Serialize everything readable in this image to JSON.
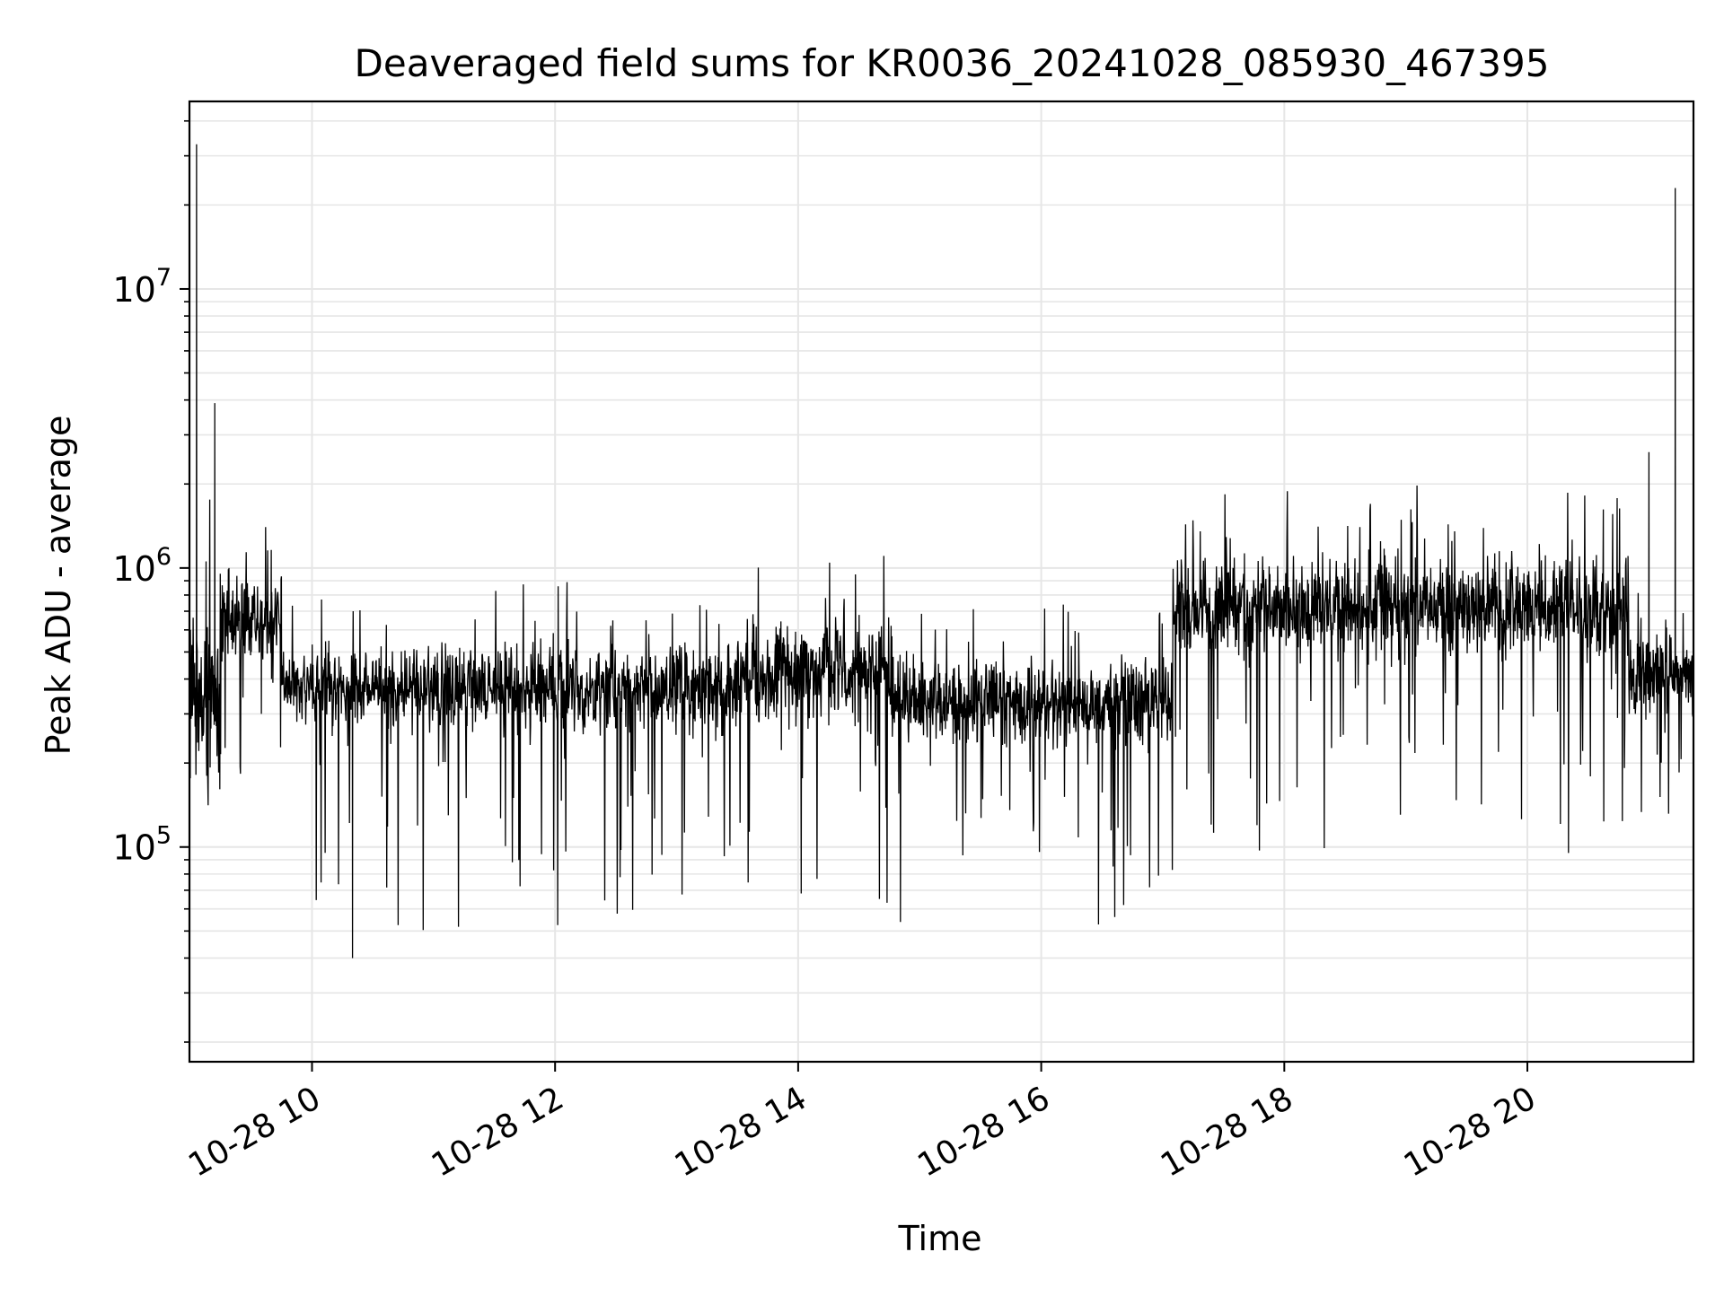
{
  "chart_data": {
    "type": "line",
    "title": "Deaveraged field sums for KR0036_20241028_085930_467395",
    "xlabel": "Time",
    "ylabel": "Peak ADU - average",
    "x_axis": {
      "kind": "datetime",
      "range": [
        "2024-10-28T08:59:30",
        "2024-10-28T21:22:00"
      ],
      "ticks": [
        {
          "value": "2024-10-28T10:00",
          "label": "10-28 10"
        },
        {
          "value": "2024-10-28T12:00",
          "label": "10-28 12"
        },
        {
          "value": "2024-10-28T14:00",
          "label": "10-28 14"
        },
        {
          "value": "2024-10-28T16:00",
          "label": "10-28 16"
        },
        {
          "value": "2024-10-28T18:00",
          "label": "10-28 18"
        },
        {
          "value": "2024-10-28T20:00",
          "label": "10-28 20"
        }
      ],
      "tick_rotation_deg": 30
    },
    "y_axis": {
      "scale": "log",
      "range": [
        17000,
        47000000
      ],
      "ticks": [
        {
          "value": 100000,
          "base": "10",
          "exp": "5"
        },
        {
          "value": 1000000,
          "base": "10",
          "exp": "6"
        },
        {
          "value": 10000000,
          "base": "10",
          "exp": "7"
        }
      ]
    },
    "grid": true,
    "grid_minor_y": true,
    "line_color": "#000000",
    "grid_color": "#e6e6e6",
    "series": [
      {
        "name": "",
        "x": [
          "2024-10-28T09:00:00",
          "2024-10-28T09:03:00",
          "2024-10-28T09:04:00",
          "2024-10-28T09:06:00",
          "2024-10-28T09:08:00",
          "2024-10-28T09:12:00",
          "2024-10-28T09:16:00",
          "2024-10-28T09:19:00",
          "2024-10-28T09:22:00",
          "2024-10-28T09:25:00",
          "2024-10-28T09:30:00",
          "2024-10-28T09:35:00",
          "2024-10-28T09:40:00",
          "2024-10-28T09:45:00",
          "2024-10-28T09:50:00",
          "2024-10-28T09:55:00",
          "2024-10-28T10:00:00",
          "2024-10-28T10:10:00",
          "2024-10-28T10:20:00",
          "2024-10-28T10:30:00",
          "2024-10-28T10:40:00",
          "2024-10-28T10:50:00",
          "2024-10-28T11:00:00",
          "2024-10-28T11:15:00",
          "2024-10-28T11:30:00",
          "2024-10-28T11:45:00",
          "2024-10-28T12:00:00",
          "2024-10-28T12:30:00",
          "2024-10-28T13:00:00",
          "2024-10-28T13:30:00",
          "2024-10-28T14:00:00",
          "2024-10-28T14:30:00",
          "2024-10-28T15:00:00",
          "2024-10-28T15:30:00",
          "2024-10-28T16:00:00",
          "2024-10-28T16:30:00",
          "2024-10-28T17:00:00",
          "2024-10-28T17:05:00",
          "2024-10-28T17:30:00",
          "2024-10-28T18:00:00",
          "2024-10-28T18:30:00",
          "2024-10-28T19:00:00",
          "2024-10-28T19:30:00",
          "2024-10-28T20:00:00",
          "2024-10-28T20:30:00",
          "2024-10-28T20:50:00",
          "2024-10-28T21:00:00",
          "2024-10-28T21:10:00",
          "2024-10-28T21:13:00",
          "2024-10-28T21:22:00"
        ],
        "y": [
          600000,
          33000000,
          400000,
          250000,
          180000,
          3900000,
          500000,
          1000000,
          700000,
          550000,
          500000,
          300000,
          400000,
          380000,
          350000,
          300000,
          370000,
          250000,
          40000,
          350000,
          300000,
          380000,
          450000,
          500000,
          400000,
          350000,
          350000,
          330000,
          300000,
          350000,
          400000,
          380000,
          330000,
          320000,
          300000,
          320000,
          300000,
          750000,
          700000,
          720000,
          700000,
          700000,
          680000,
          750000,
          700000,
          650000,
          2600000,
          380000,
          23000000,
          500000
        ]
      }
    ],
    "envelope": {
      "description_units": "Peak ADU - average",
      "segments": [
        {
          "from": "2024-10-28T08:59:30",
          "to": "2024-10-28T09:15:00",
          "median": 350000,
          "low": 100000,
          "high": 2300000
        },
        {
          "from": "2024-10-28T09:15:00",
          "to": "2024-10-28T09:45:00",
          "median": 650000,
          "low": 180000,
          "high": 1600000
        },
        {
          "from": "2024-10-28T09:45:00",
          "to": "2024-10-28T11:00:00",
          "median": 370000,
          "low": 50000,
          "high": 800000
        },
        {
          "from": "2024-10-28T11:00:00",
          "to": "2024-10-28T13:30:00",
          "median": 370000,
          "low": 50000,
          "high": 900000
        },
        {
          "from": "2024-10-28T13:30:00",
          "to": "2024-10-28T14:45:00",
          "median": 420000,
          "low": 60000,
          "high": 1150000
        },
        {
          "from": "2024-10-28T14:45:00",
          "to": "2024-10-28T17:05:00",
          "median": 330000,
          "low": 50000,
          "high": 800000
        },
        {
          "from": "2024-10-28T17:05:00",
          "to": "2024-10-28T20:50:00",
          "median": 720000,
          "low": 90000,
          "high": 2000000
        },
        {
          "from": "2024-10-28T20:50:00",
          "to": "2024-10-28T21:22:00",
          "median": 420000,
          "low": 130000,
          "high": 1000000
        }
      ]
    }
  }
}
